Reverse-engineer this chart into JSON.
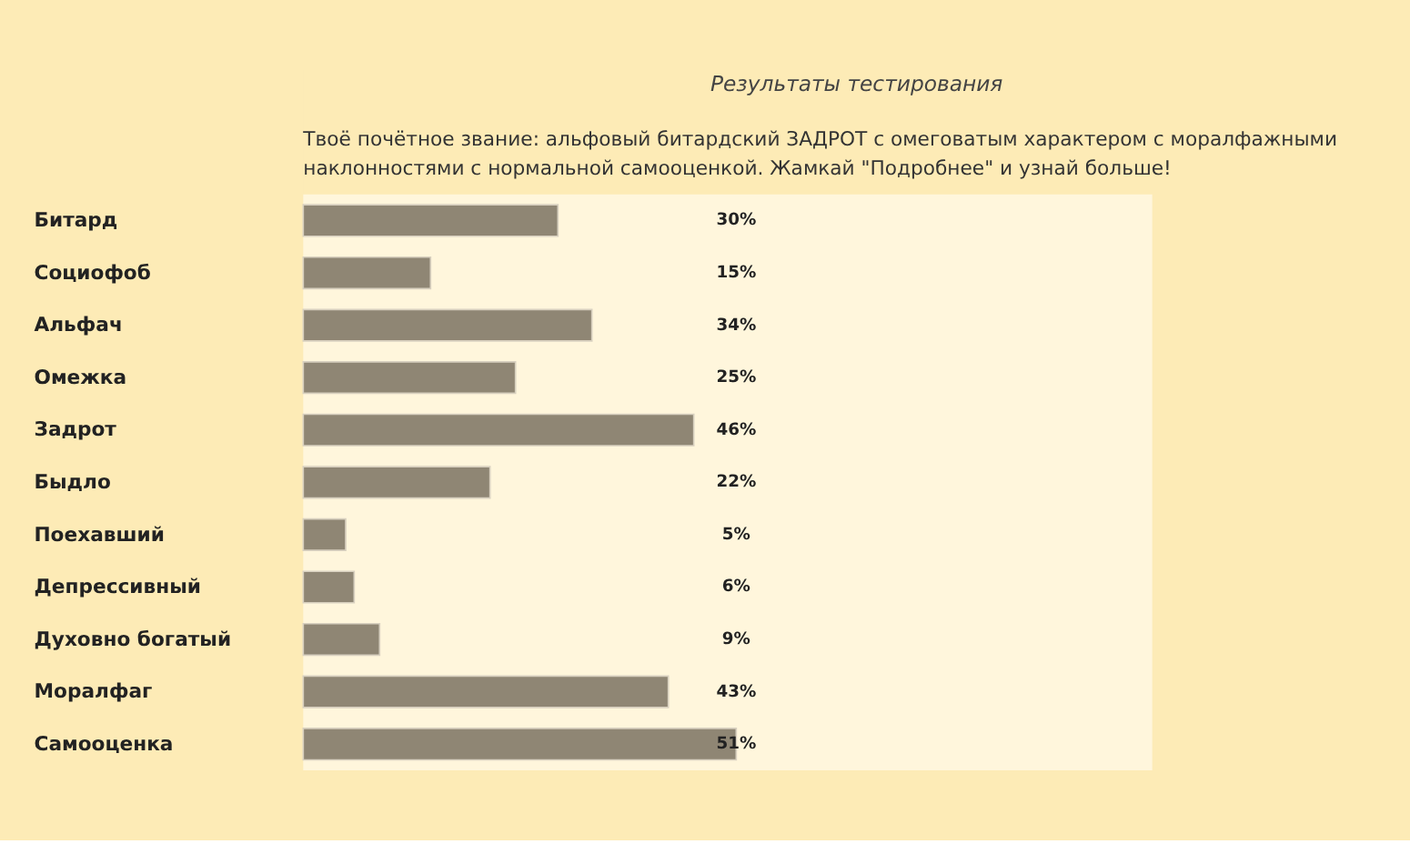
{
  "chart_data": {
    "type": "bar",
    "orientation": "horizontal",
    "title": "Результаты тестирования",
    "subtitle": "Твоё почётное звание: альфовый битардский ЗАДРОТ с омеговатым характером с моралфажными наклонностями с нормальной самооценкой. Жамкай \"Подробнее\" и узнай больше!",
    "categories": [
      "Битард",
      "Социофоб",
      "Альфач",
      "Омежка",
      "Задрот",
      "Быдло",
      "Поехавший",
      "Депрессивный",
      "Духовно богатый",
      "Моралфаг",
      "Самооценка"
    ],
    "values": [
      30,
      15,
      34,
      25,
      46,
      22,
      5,
      6,
      9,
      43,
      51
    ],
    "value_labels": [
      "30%",
      "15%",
      "34%",
      "25%",
      "46%",
      "22%",
      "5%",
      "6%",
      "9%",
      "43%",
      "51%"
    ],
    "color": "#8f8674",
    "xlim": [
      0,
      100
    ],
    "tick_labels": "y"
  }
}
